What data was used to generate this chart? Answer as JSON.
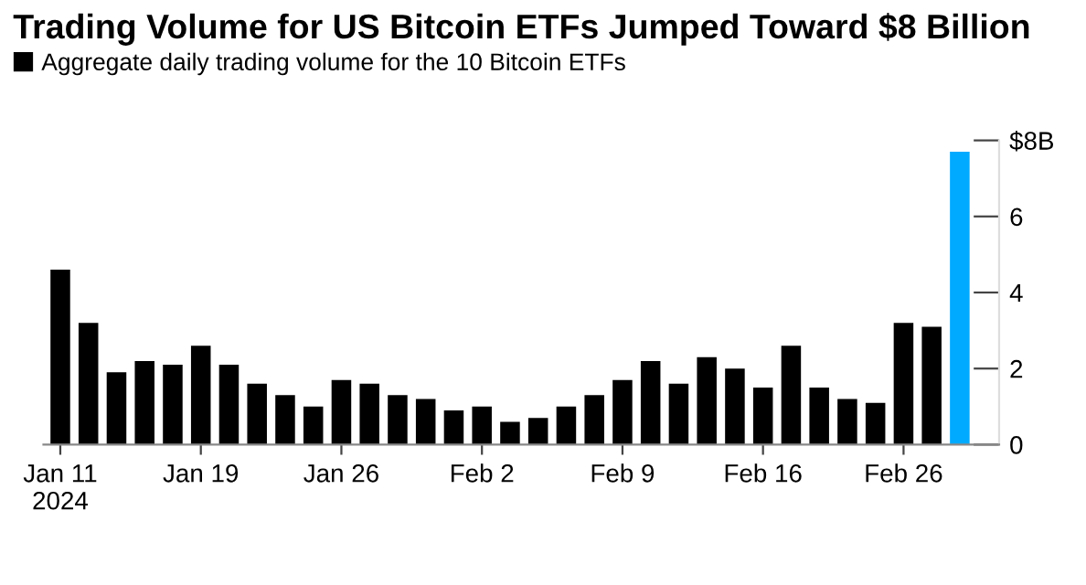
{
  "chart_data": {
    "type": "bar",
    "title": "Trading Volume for US Bitcoin ETFs Jumped Toward $8 Billion",
    "categories": [
      "Jan 11\n2024",
      null,
      null,
      null,
      null,
      "Jan 19",
      null,
      null,
      null,
      null,
      "Jan 26",
      null,
      null,
      null,
      null,
      "Feb 2",
      null,
      null,
      null,
      null,
      "Feb 9",
      null,
      null,
      null,
      null,
      "Feb 16",
      null,
      null,
      null,
      null,
      "Feb 26",
      null,
      null
    ],
    "series": [
      {
        "name": "Aggregate daily trading volume for the 10 Bitcoin ETFs",
        "color": "#000000",
        "colors": [
          "#000000",
          "#000000",
          "#000000",
          "#000000",
          "#000000",
          "#000000",
          "#000000",
          "#000000",
          "#000000",
          "#000000",
          "#000000",
          "#000000",
          "#000000",
          "#000000",
          "#000000",
          "#000000",
          "#000000",
          "#000000",
          "#000000",
          "#000000",
          "#000000",
          "#000000",
          "#000000",
          "#000000",
          "#000000",
          "#000000",
          "#000000",
          "#000000",
          "#000000",
          "#000000",
          "#000000",
          "#000000",
          "#00aaff"
        ],
        "values": [
          4.6,
          3.2,
          1.9,
          2.2,
          2.1,
          2.6,
          2.1,
          1.6,
          1.3,
          1.0,
          1.7,
          1.6,
          1.3,
          1.2,
          0.9,
          1.0,
          0.6,
          0.7,
          1.0,
          1.3,
          1.7,
          2.2,
          1.6,
          2.3,
          2.0,
          1.5,
          2.6,
          1.5,
          1.2,
          1.1,
          3.2,
          3.1,
          7.7
        ]
      }
    ],
    "ylim": [
      0,
      8
    ],
    "yticks": [
      0,
      2,
      4,
      6,
      {
        "value": 8,
        "label": "$8B"
      }
    ],
    "legend": "top left",
    "grid": false
  }
}
